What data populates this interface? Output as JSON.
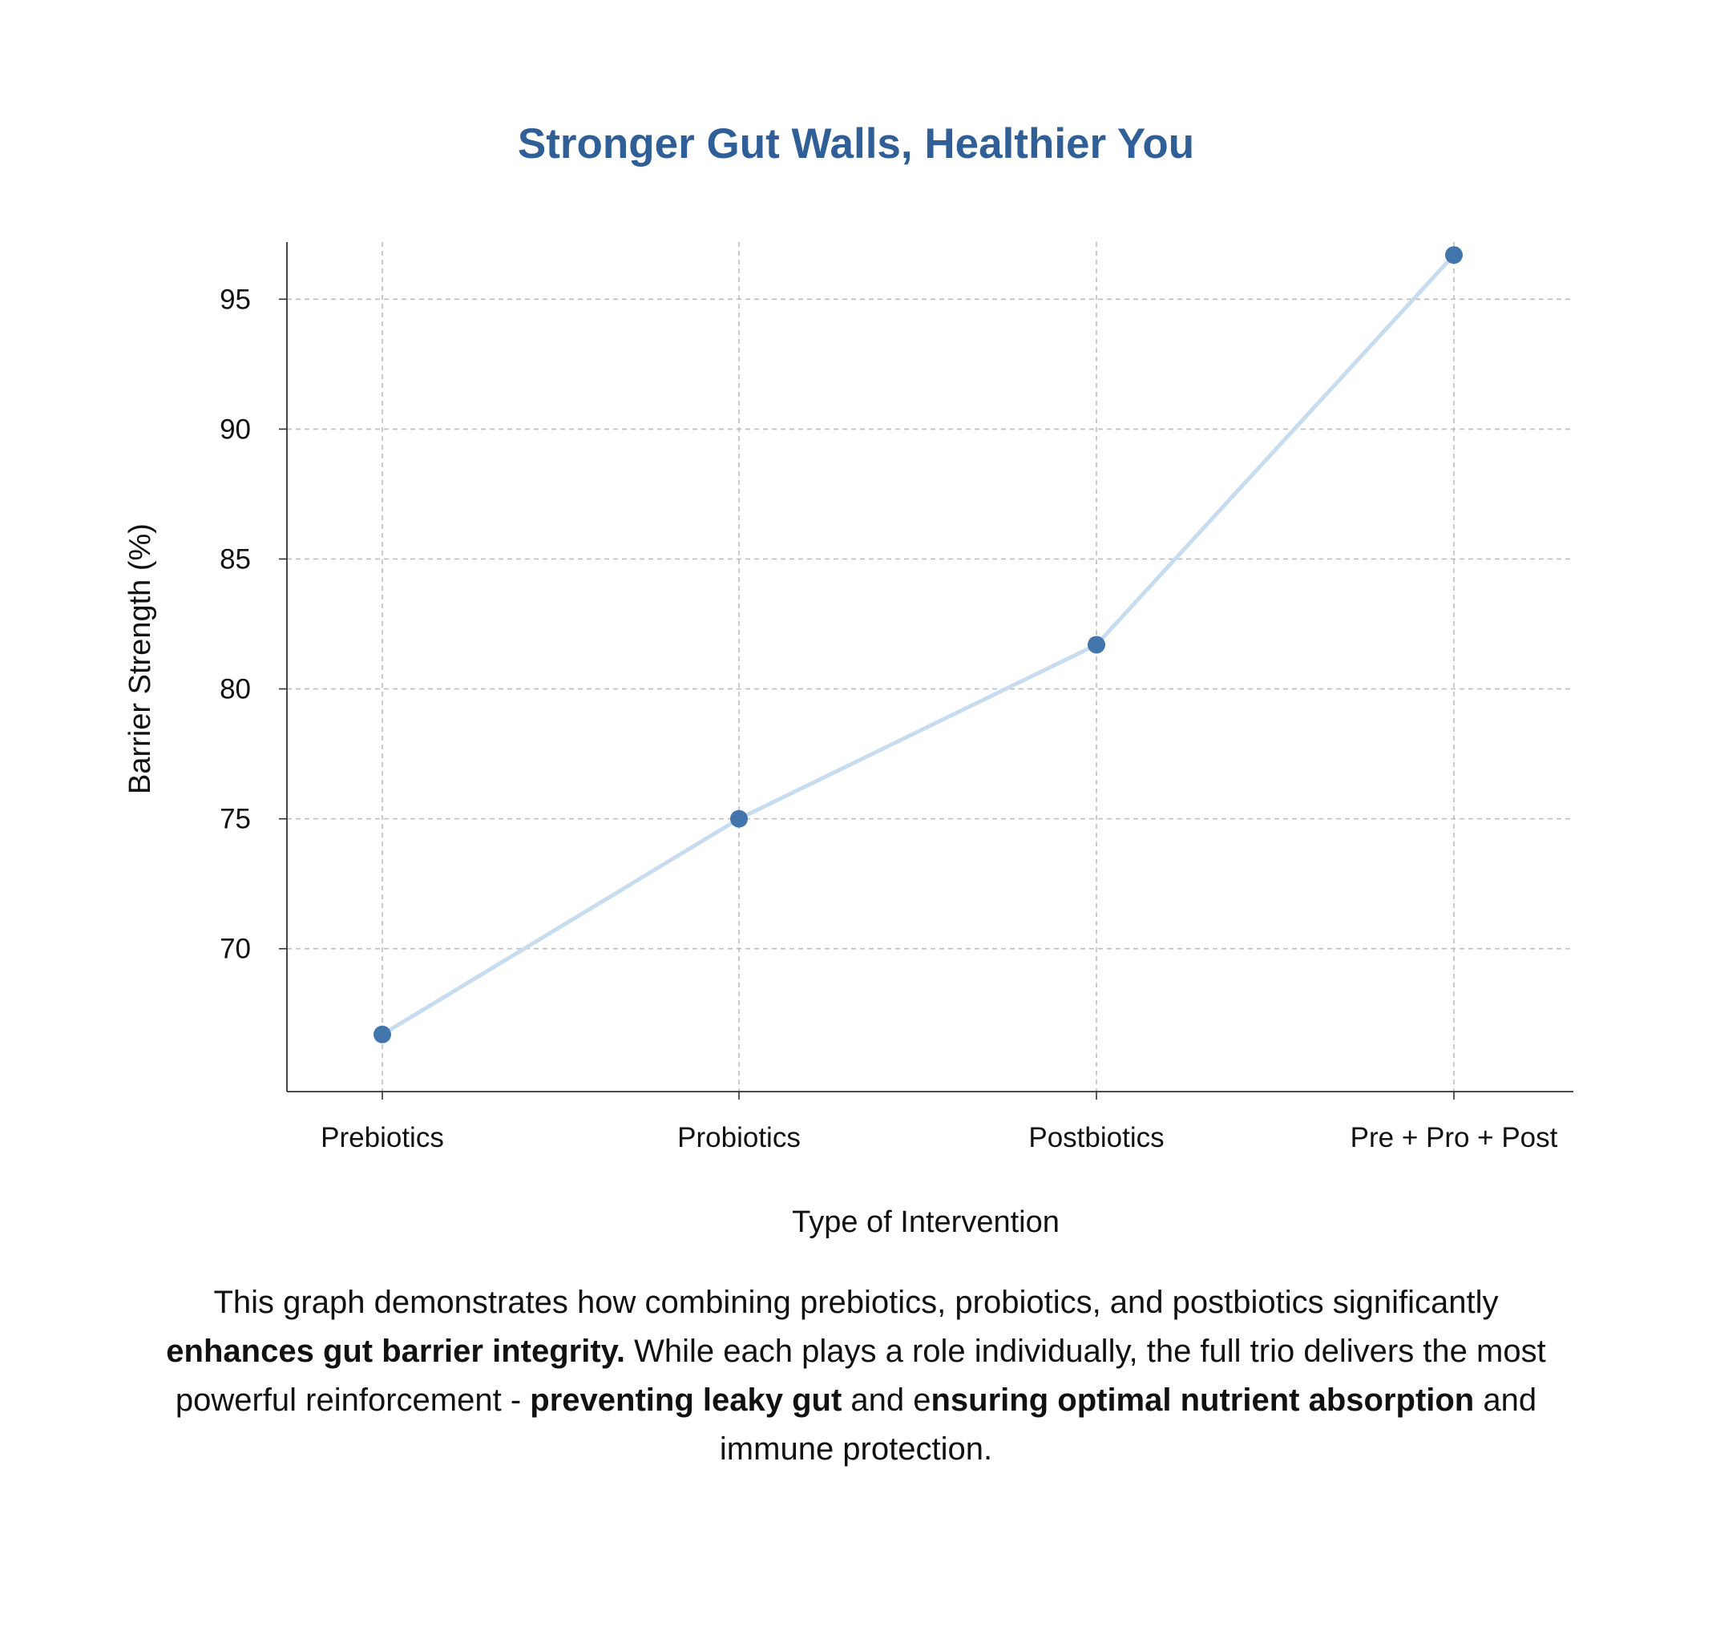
{
  "colors": {
    "title": "#2f5f96",
    "line": "#c8dcef",
    "marker": "#4375ad",
    "grid": "#bdbdbd",
    "axis": "#333333"
  },
  "chart_data": {
    "type": "line",
    "title": "Stronger Gut Walls, Healthier You",
    "xlabel": "Type of Intervention",
    "ylabel": "Barrier Strength (%)",
    "categories": [
      "Prebiotics",
      "Probiotics",
      "Postbiotics",
      "Pre + Pro + Post"
    ],
    "series": [
      {
        "values": [
          66.7,
          75.0,
          81.7,
          96.7
        ]
      }
    ],
    "ylim": [
      64.5,
      97.2
    ],
    "yticks": [
      70,
      75,
      80,
      85,
      90,
      95
    ],
    "grid": true,
    "marker": "circle"
  },
  "caption": {
    "p1": "This graph demonstrates how combining prebiotics, probiotics, and postbiotics significantly ",
    "b1": "enhances gut barrier integrity.",
    "p2": " While each plays a role individually, the full trio delivers the most powerful reinforcement - ",
    "b2": "preventing leaky gut",
    "p3": " and e",
    "b3": "nsuring optimal nutrient absorption",
    "p4": " and immune protection."
  }
}
